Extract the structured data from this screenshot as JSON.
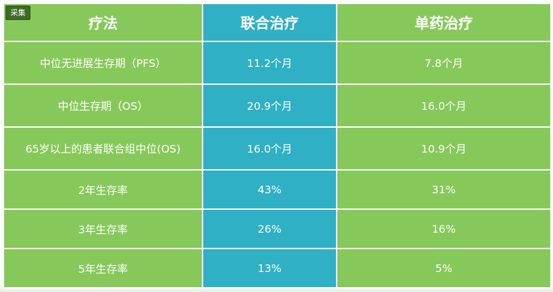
{
  "badge": "采集",
  "header": {
    "col1": "疗法",
    "col2": "联合治疗",
    "col3": "单药治疗"
  },
  "rows": [
    {
      "label": "中位无进展生存期（PFS）",
      "combo": "11.2个月",
      "mono": "7.8个月"
    },
    {
      "label": "中位生存期（OS）",
      "combo": "20.9个月",
      "mono": "16.0个月"
    },
    {
      "label": "65岁以上的患者联合组中位(OS)",
      "combo": "16.0个月",
      "mono": "10.9个月"
    },
    {
      "label": "2年生存率",
      "combo": "43%",
      "mono": "31%"
    },
    {
      "label": "3年生存率",
      "combo": "26%",
      "mono": "16%"
    },
    {
      "label": "5年生存率",
      "combo": "13%",
      "mono": "5%"
    }
  ],
  "colors": {
    "green": "#86c95a",
    "teal": "#2fb0c4",
    "badge_bg": "#3e6b25"
  }
}
